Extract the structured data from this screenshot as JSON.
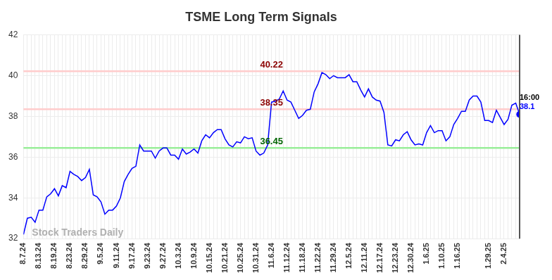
{
  "chart_data": {
    "type": "line",
    "title": "TSME Long Term Signals",
    "watermark": "Stock Traders Daily",
    "color": "#0000ff",
    "grid": true,
    "categories": [
      "8.7.24",
      null,
      null,
      null,
      "8.13.24",
      null,
      null,
      null,
      "8.19.24",
      null,
      null,
      null,
      "8.23.24",
      null,
      null,
      null,
      "8.29.24",
      null,
      null,
      null,
      "9.5.24",
      null,
      null,
      null,
      "9.11.24",
      null,
      null,
      null,
      "9.17.24",
      null,
      null,
      null,
      "9.23.24",
      null,
      null,
      null,
      "9.27.24",
      null,
      null,
      null,
      "10.3.24",
      null,
      null,
      null,
      "10.9.24",
      null,
      null,
      null,
      "10.15.24",
      null,
      null,
      null,
      "10.21.24",
      null,
      null,
      null,
      "10.25.24",
      null,
      null,
      null,
      "10.31.24",
      null,
      null,
      null,
      "11.6.24",
      null,
      null,
      null,
      "11.12.24",
      null,
      null,
      null,
      "11.18.24",
      null,
      null,
      null,
      "11.22.24",
      null,
      null,
      null,
      "11.29.24",
      null,
      null,
      null,
      "12.5.24",
      null,
      null,
      null,
      "12.11.24",
      null,
      null,
      null,
      "12.17.24",
      null,
      null,
      null,
      "12.23.24",
      null,
      null,
      null,
      "12.30.24",
      null,
      null,
      null,
      "1.6.25",
      null,
      null,
      null,
      "1.10.25",
      null,
      null,
      null,
      "1.16.25",
      null,
      null,
      null,
      null,
      null,
      null,
      null,
      "1.29.25",
      null,
      null,
      null,
      "2.4.25",
      null,
      null,
      null,
      null
    ],
    "values": [
      32.2,
      33.0,
      33.05,
      32.8,
      33.4,
      33.4,
      34.05,
      34.2,
      34.45,
      34.1,
      34.6,
      34.5,
      35.3,
      35.15,
      35.05,
      34.85,
      35.0,
      35.4,
      34.15,
      34.05,
      33.8,
      33.2,
      33.4,
      33.4,
      33.6,
      34.0,
      34.8,
      35.15,
      35.45,
      35.55,
      36.6,
      36.3,
      36.3,
      36.3,
      35.95,
      36.3,
      36.45,
      36.45,
      36.1,
      36.1,
      35.9,
      36.4,
      36.15,
      36.25,
      36.4,
      36.2,
      36.8,
      37.1,
      36.95,
      37.2,
      37.35,
      37.35,
      36.9,
      36.6,
      36.5,
      36.75,
      36.7,
      37.0,
      36.9,
      36.95,
      36.3,
      36.1,
      36.2,
      36.6,
      38.7,
      38.75,
      38.85,
      39.25,
      38.8,
      38.7,
      38.3,
      37.9,
      38.05,
      38.3,
      38.35,
      39.2,
      39.6,
      40.15,
      40.05,
      39.85,
      40.0,
      39.9,
      39.9,
      39.9,
      40.05,
      39.7,
      39.7,
      39.3,
      38.95,
      39.35,
      38.95,
      38.8,
      38.75,
      38.2,
      36.6,
      36.55,
      36.85,
      36.8,
      37.1,
      37.25,
      36.85,
      36.6,
      36.65,
      36.6,
      37.2,
      37.55,
      37.2,
      37.3,
      37.3,
      36.8,
      37.0,
      37.6,
      37.9,
      38.25,
      38.25,
      38.8,
      39.0,
      39.0,
      38.7,
      37.8,
      37.8,
      37.7,
      38.3,
      37.95,
      37.6,
      37.85,
      38.55,
      38.65,
      38.1
    ],
    "ylim": [
      32,
      42
    ],
    "yticks": [
      32,
      34,
      36,
      38,
      40,
      42
    ],
    "levels": [
      {
        "value": 40.22,
        "label": "40.22",
        "color": "#ffcccc",
        "label_color": "#8b0000"
      },
      {
        "value": 38.35,
        "label": "38.35",
        "color": "#ffcccc",
        "label_color": "#8b0000"
      },
      {
        "value": 36.45,
        "label": "36.45",
        "color": "#99ee99",
        "label_color": "#006400"
      }
    ],
    "last_point": {
      "time": "16:00",
      "value_label": "38.1"
    }
  }
}
